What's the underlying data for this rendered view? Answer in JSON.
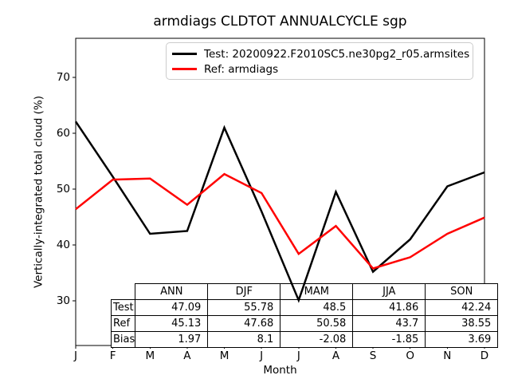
{
  "title": "armdiags CLDTOT ANNUALCYCLE sgp",
  "legend": {
    "items": [
      {
        "label": "Test: 20200922.F2010SC5.ne30pg2_r05.armsites",
        "color": "#000000"
      },
      {
        "label": "Ref: armdiags",
        "color": "#ff0000"
      }
    ]
  },
  "chart_data": {
    "type": "line",
    "title": "armdiags CLDTOT ANNUALCYCLE sgp",
    "xlabel": "Month",
    "ylabel": "Vertically-integrated total cloud (%)",
    "x_categories": [
      "J",
      "F",
      "M",
      "A",
      "M",
      "J",
      "J",
      "A",
      "S",
      "O",
      "N",
      "D"
    ],
    "yticks": [
      30,
      40,
      50,
      60,
      70
    ],
    "ylim": [
      22,
      77
    ],
    "grid": false,
    "legend_position": "upper center",
    "series": [
      {
        "name": "Test: 20200922.F2010SC5.ne30pg2_r05.armsites",
        "color": "#000000",
        "values": [
          62.1,
          52.2,
          42.0,
          42.5,
          61.0,
          46.0,
          30.1,
          49.5,
          35.2,
          41.0,
          50.5,
          53.0
        ]
      },
      {
        "name": "Ref: armdiags",
        "color": "#ff0000",
        "values": [
          46.4,
          51.7,
          51.9,
          47.2,
          52.7,
          49.3,
          38.4,
          43.4,
          35.8,
          37.8,
          42.0,
          44.9
        ]
      }
    ]
  },
  "table": {
    "columns": [
      "ANN",
      "DJF",
      "MAM",
      "JJA",
      "SON"
    ],
    "rows": [
      {
        "label": "Test",
        "values": [
          "47.09",
          "55.78",
          "48.5",
          "41.86",
          "42.24"
        ]
      },
      {
        "label": "Ref",
        "values": [
          "45.13",
          "47.68",
          "50.58",
          "43.7",
          "38.55"
        ]
      },
      {
        "label": "Bias",
        "values": [
          "1.97",
          "8.1",
          "-2.08",
          "-1.85",
          "3.69"
        ]
      }
    ]
  }
}
